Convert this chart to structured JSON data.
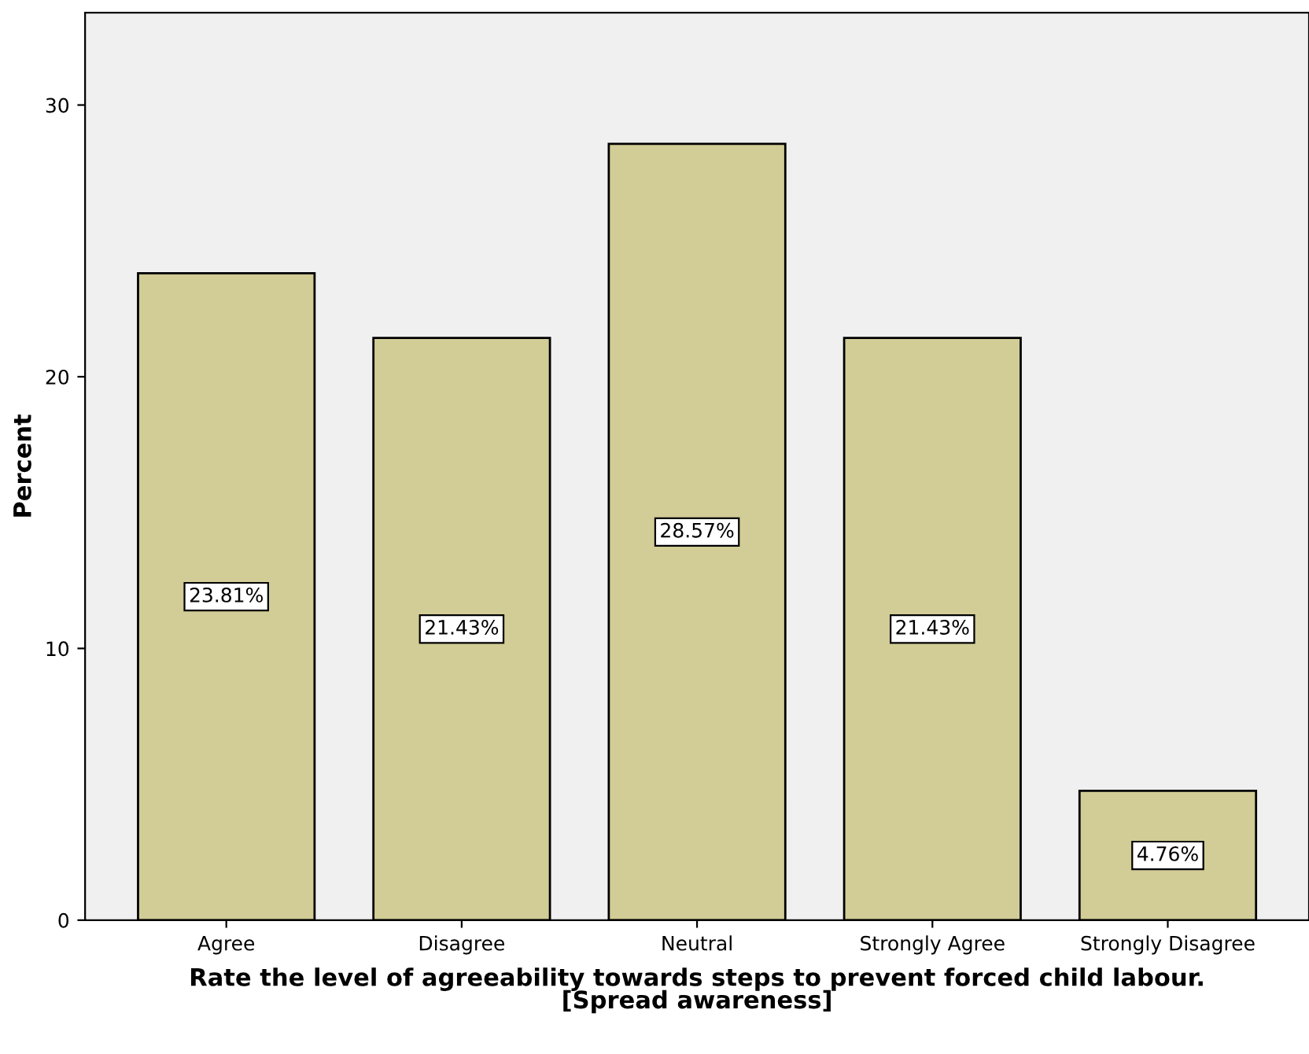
{
  "chart_data": {
    "type": "bar",
    "categories": [
      "Agree",
      "Disagree",
      "Neutral",
      "Strongly Agree",
      "Strongly Disagree"
    ],
    "values": [
      23.81,
      21.43,
      28.57,
      21.43,
      4.76
    ],
    "value_labels": [
      "23.81%",
      "21.43%",
      "28.57%",
      "21.43%",
      "4.76%"
    ],
    "color": "#d2cc96",
    "xlabel": "Rate the level of agreeability towards steps to prevent forced child labour.\n[Spread awareness]",
    "ylabel": "Percent",
    "ylim": [
      0,
      33.4
    ],
    "yticks": [
      0,
      10,
      20,
      30
    ],
    "grid": false
  }
}
